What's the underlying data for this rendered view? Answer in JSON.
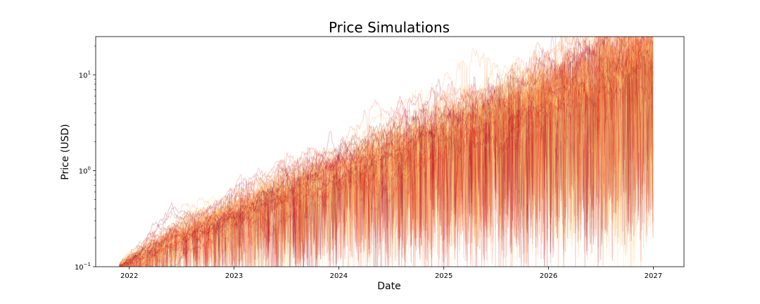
{
  "chart_data": {
    "type": "line",
    "title": "Price Simulations",
    "xlabel": "Date",
    "ylabel": "Price (USD)",
    "x_scale": "time",
    "y_scale": "log",
    "xlim": [
      "2021-09-06",
      "2027-04-18"
    ],
    "ylim": [
      0.1,
      25
    ],
    "x_ticks": [
      {
        "date": "2022-01-01",
        "label": "2022"
      },
      {
        "date": "2023-01-01",
        "label": "2023"
      },
      {
        "date": "2024-01-01",
        "label": "2024"
      },
      {
        "date": "2025-01-01",
        "label": "2025"
      },
      {
        "date": "2026-01-01",
        "label": "2026"
      },
      {
        "date": "2027-01-01",
        "label": "2027"
      }
    ],
    "y_ticks": [
      {
        "value": 0.1,
        "base": "10",
        "exp": "−1"
      },
      {
        "value": 1,
        "base": "10",
        "exp": "0"
      },
      {
        "value": 10,
        "base": "10",
        "exp": "1"
      }
    ],
    "date_range": [
      "2021-11-27",
      "2026-12-31"
    ],
    "median_path": [
      {
        "date": "2021-11-27",
        "price": 0.1
      },
      {
        "date": "2022-07-01",
        "price": 0.22
      },
      {
        "date": "2023-01-01",
        "price": 0.36
      },
      {
        "date": "2023-07-01",
        "price": 0.62
      },
      {
        "date": "2024-01-01",
        "price": 1.0
      },
      {
        "date": "2024-07-01",
        "price": 1.6
      },
      {
        "date": "2025-01-01",
        "price": 2.5
      },
      {
        "date": "2025-07-01",
        "price": 4.0
      },
      {
        "date": "2026-01-01",
        "price": 6.5
      },
      {
        "date": "2026-07-01",
        "price": 10.0
      },
      {
        "date": "2026-12-31",
        "price": 16.0
      }
    ],
    "series_count": 100,
    "colormap": [
      "#800026",
      "#bd0026",
      "#e31a1c",
      "#fc4e2a",
      "#fd8d3c",
      "#feb24c",
      "#fed976",
      "#ffeda0"
    ],
    "line_alpha": 0.22,
    "grid": false,
    "legend": "none"
  }
}
